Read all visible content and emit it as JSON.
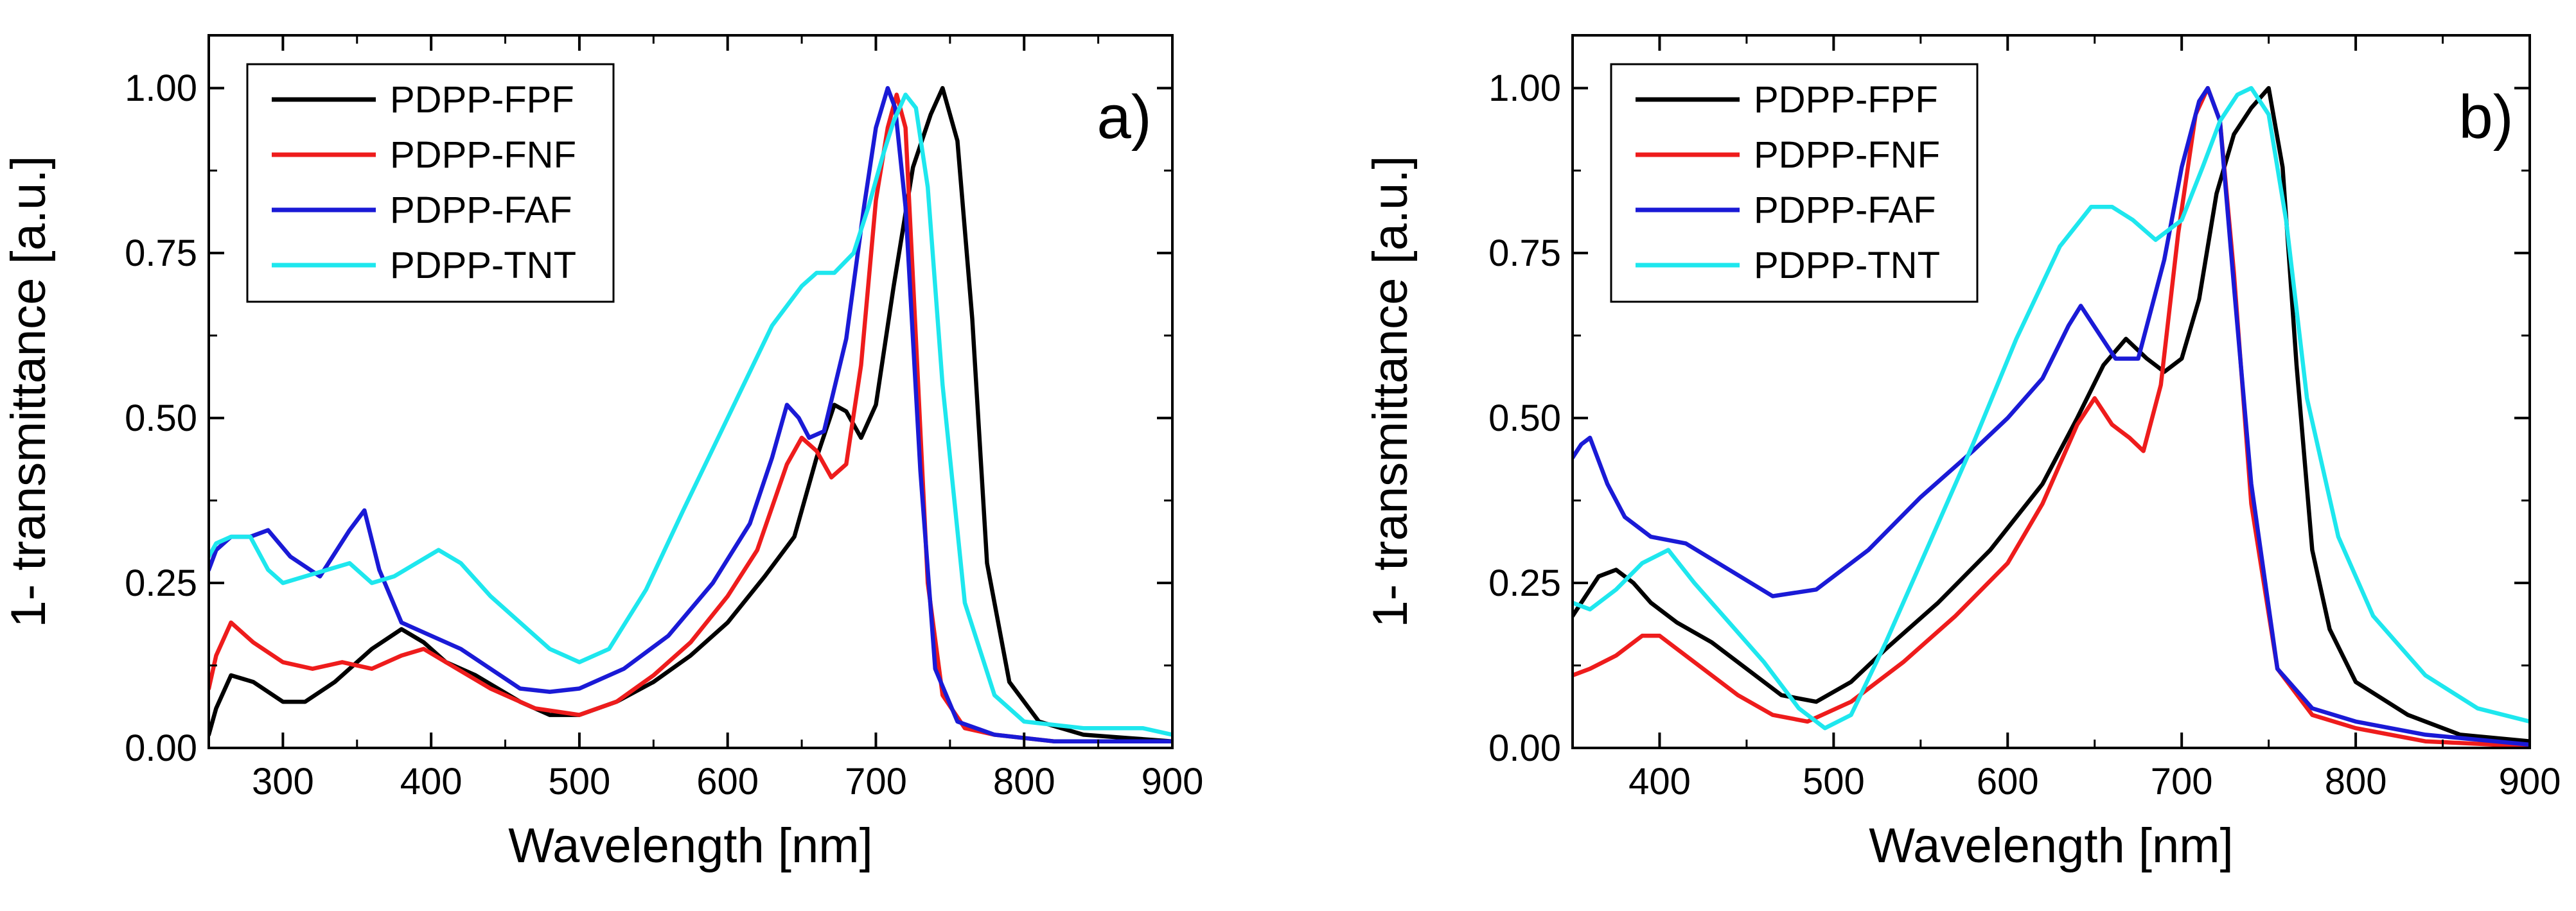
{
  "chart_data": [
    {
      "type": "line",
      "panel_label": "a)",
      "xlabel": "Wavelength [nm]",
      "ylabel": "1- transmittance [a.u.]",
      "xlim": [
        250,
        900
      ],
      "ylim": [
        0,
        1.08
      ],
      "xticks": [
        300,
        400,
        500,
        600,
        700,
        800,
        900
      ],
      "xtick_labels": [
        "300",
        "400",
        "500",
        "600",
        "700",
        "800",
        "900"
      ],
      "yticks": [
        0.0,
        0.25,
        0.5,
        0.75,
        1.0
      ],
      "ytick_labels": [
        "0.00",
        "0.25",
        "0.50",
        "0.75",
        "1.00"
      ],
      "legend_position": "top-left",
      "series": [
        {
          "name": "PDPP-FPF",
          "color": "#000000",
          "x": [
            250,
            255,
            265,
            280,
            300,
            315,
            335,
            360,
            380,
            395,
            410,
            430,
            460,
            480,
            500,
            525,
            550,
            575,
            600,
            625,
            645,
            660,
            672,
            680,
            690,
            700,
            712,
            725,
            737,
            745,
            755,
            765,
            775,
            790,
            810,
            840,
            870,
            900
          ],
          "y": [
            0.02,
            0.06,
            0.11,
            0.1,
            0.07,
            0.07,
            0.1,
            0.15,
            0.18,
            0.16,
            0.13,
            0.11,
            0.07,
            0.05,
            0.05,
            0.07,
            0.1,
            0.14,
            0.19,
            0.26,
            0.32,
            0.44,
            0.52,
            0.51,
            0.47,
            0.52,
            0.7,
            0.88,
            0.96,
            1.0,
            0.92,
            0.65,
            0.28,
            0.1,
            0.04,
            0.02,
            0.015,
            0.01
          ]
        },
        {
          "name": "PDPP-FNF",
          "color": "#ee1c1c",
          "x": [
            250,
            255,
            265,
            280,
            300,
            320,
            340,
            360,
            380,
            395,
            410,
            440,
            470,
            500,
            525,
            550,
            575,
            600,
            620,
            640,
            650,
            660,
            670,
            680,
            690,
            700,
            708,
            714,
            720,
            727,
            735,
            745,
            760,
            780,
            820,
            860,
            900
          ],
          "y": [
            0.09,
            0.14,
            0.19,
            0.16,
            0.13,
            0.12,
            0.13,
            0.12,
            0.14,
            0.15,
            0.13,
            0.09,
            0.06,
            0.05,
            0.07,
            0.11,
            0.16,
            0.23,
            0.3,
            0.43,
            0.47,
            0.45,
            0.41,
            0.43,
            0.58,
            0.83,
            0.94,
            0.99,
            0.94,
            0.62,
            0.25,
            0.08,
            0.03,
            0.02,
            0.01,
            0.01,
            0.01
          ]
        },
        {
          "name": "PDPP-FAF",
          "color": "#1a1ad6",
          "x": [
            250,
            255,
            265,
            278,
            290,
            305,
            325,
            345,
            355,
            365,
            380,
            400,
            420,
            440,
            460,
            480,
            500,
            530,
            560,
            590,
            615,
            630,
            640,
            648,
            655,
            665,
            680,
            692,
            700,
            708,
            713,
            720,
            730,
            740,
            755,
            780,
            820,
            860,
            900
          ],
          "y": [
            0.27,
            0.3,
            0.32,
            0.32,
            0.33,
            0.29,
            0.26,
            0.33,
            0.36,
            0.27,
            0.19,
            0.17,
            0.15,
            0.12,
            0.09,
            0.085,
            0.09,
            0.12,
            0.17,
            0.25,
            0.34,
            0.44,
            0.52,
            0.5,
            0.47,
            0.48,
            0.62,
            0.82,
            0.94,
            1.0,
            0.97,
            0.82,
            0.42,
            0.12,
            0.04,
            0.02,
            0.01,
            0.01,
            0.01
          ]
        },
        {
          "name": "PDPP-TNT",
          "color": "#1ee7ee",
          "x": [
            250,
            255,
            265,
            278,
            290,
            300,
            315,
            330,
            345,
            360,
            375,
            390,
            405,
            420,
            440,
            460,
            480,
            500,
            520,
            545,
            570,
            600,
            630,
            650,
            660,
            672,
            685,
            695,
            705,
            712,
            720,
            727,
            735,
            745,
            760,
            780,
            800,
            840,
            880,
            900
          ],
          "y": [
            0.29,
            0.31,
            0.32,
            0.32,
            0.27,
            0.25,
            0.26,
            0.27,
            0.28,
            0.25,
            0.26,
            0.28,
            0.3,
            0.28,
            0.23,
            0.19,
            0.15,
            0.13,
            0.15,
            0.24,
            0.36,
            0.5,
            0.64,
            0.7,
            0.72,
            0.72,
            0.75,
            0.82,
            0.9,
            0.95,
            0.99,
            0.97,
            0.85,
            0.55,
            0.22,
            0.08,
            0.04,
            0.03,
            0.03,
            0.02
          ]
        }
      ]
    },
    {
      "type": "line",
      "panel_label": "b)",
      "xlabel": "Wavelength [nm]",
      "ylabel": "1- transmittance [a.u.]",
      "xlim": [
        350,
        900
      ],
      "ylim": [
        0,
        1.08
      ],
      "xticks": [
        400,
        500,
        600,
        700,
        800,
        900
      ],
      "xtick_labels": [
        "400",
        "500",
        "600",
        "700",
        "800",
        "900"
      ],
      "yticks": [
        0.0,
        0.25,
        0.5,
        0.75,
        1.0
      ],
      "ytick_labels": [
        "0.00",
        "0.25",
        "0.50",
        "0.75",
        "1.00"
      ],
      "legend_position": "top-left",
      "series": [
        {
          "name": "PDPP-FPF",
          "color": "#000000",
          "x": [
            350,
            355,
            365,
            375,
            385,
            395,
            410,
            430,
            450,
            470,
            490,
            510,
            530,
            560,
            590,
            620,
            640,
            655,
            668,
            680,
            690,
            700,
            710,
            720,
            730,
            740,
            750,
            758,
            766,
            775,
            785,
            800,
            830,
            860,
            900
          ],
          "y": [
            0.2,
            0.22,
            0.26,
            0.27,
            0.25,
            0.22,
            0.19,
            0.16,
            0.12,
            0.08,
            0.07,
            0.1,
            0.15,
            0.22,
            0.3,
            0.4,
            0.5,
            0.58,
            0.62,
            0.59,
            0.57,
            0.59,
            0.68,
            0.84,
            0.93,
            0.97,
            1.0,
            0.88,
            0.58,
            0.3,
            0.18,
            0.1,
            0.05,
            0.02,
            0.01
          ]
        },
        {
          "name": "PDPP-FNF",
          "color": "#ee1c1c",
          "x": [
            350,
            360,
            375,
            390,
            400,
            410,
            425,
            445,
            465,
            485,
            510,
            540,
            570,
            600,
            620,
            640,
            650,
            660,
            670,
            678,
            688,
            698,
            708,
            715,
            722,
            730,
            740,
            755,
            775,
            800,
            840,
            880,
            900
          ],
          "y": [
            0.11,
            0.12,
            0.14,
            0.17,
            0.17,
            0.15,
            0.12,
            0.08,
            0.05,
            0.04,
            0.07,
            0.13,
            0.2,
            0.28,
            0.37,
            0.49,
            0.53,
            0.49,
            0.47,
            0.45,
            0.55,
            0.78,
            0.96,
            1.0,
            0.95,
            0.72,
            0.37,
            0.12,
            0.05,
            0.03,
            0.01,
            0.005,
            0.005
          ]
        },
        {
          "name": "PDPP-FAF",
          "color": "#1a1ad6",
          "x": [
            350,
            355,
            360,
            370,
            380,
            395,
            415,
            440,
            465,
            490,
            520,
            550,
            580,
            600,
            620,
            635,
            642,
            652,
            662,
            675,
            690,
            700,
            710,
            715,
            722,
            730,
            740,
            755,
            775,
            800,
            840,
            880,
            900
          ],
          "y": [
            0.44,
            0.46,
            0.47,
            0.4,
            0.35,
            0.32,
            0.31,
            0.27,
            0.23,
            0.24,
            0.3,
            0.38,
            0.45,
            0.5,
            0.56,
            0.64,
            0.67,
            0.63,
            0.59,
            0.59,
            0.74,
            0.88,
            0.98,
            1.0,
            0.95,
            0.7,
            0.4,
            0.12,
            0.06,
            0.04,
            0.02,
            0.01,
            0.005
          ]
        },
        {
          "name": "PDPP-TNT",
          "color": "#1ee7ee",
          "x": [
            350,
            360,
            375,
            390,
            405,
            420,
            440,
            460,
            480,
            495,
            510,
            530,
            555,
            580,
            605,
            630,
            648,
            660,
            672,
            685,
            700,
            712,
            722,
            732,
            740,
            750,
            760,
            772,
            790,
            810,
            840,
            870,
            900
          ],
          "y": [
            0.22,
            0.21,
            0.24,
            0.28,
            0.3,
            0.25,
            0.19,
            0.13,
            0.06,
            0.03,
            0.05,
            0.16,
            0.31,
            0.46,
            0.62,
            0.76,
            0.82,
            0.82,
            0.8,
            0.77,
            0.8,
            0.88,
            0.95,
            0.99,
            1.0,
            0.96,
            0.8,
            0.53,
            0.32,
            0.2,
            0.11,
            0.06,
            0.04
          ]
        }
      ]
    }
  ]
}
